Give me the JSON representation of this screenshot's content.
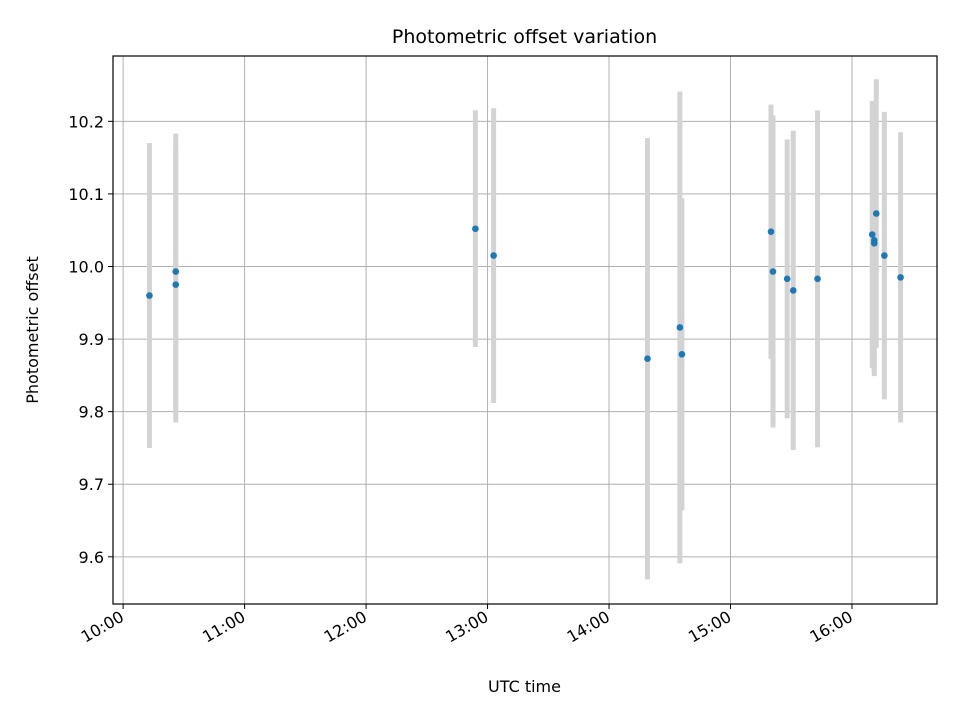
{
  "chart_data": {
    "type": "scatter",
    "title": "Photometric offset variation",
    "xlabel": "UTC time",
    "ylabel": "Photometric offset",
    "x_ticks": [
      "10:00",
      "11:00",
      "12:00",
      "13:00",
      "14:00",
      "15:00",
      "16:00"
    ],
    "y_ticks": [
      "9.6",
      "9.7",
      "9.8",
      "9.9",
      "10.0",
      "10.1",
      "10.2"
    ],
    "xlim": [
      "09:55",
      "16:42"
    ],
    "ylim": [
      9.535,
      10.29
    ],
    "grid": true,
    "point_color": "#1f77b4",
    "errorbar_color": "#d3d3d3",
    "points": [
      {
        "x": "10:13",
        "y": 9.96,
        "yerr": 0.21
      },
      {
        "x": "10:26",
        "y": 9.975,
        "yerr": 0.19
      },
      {
        "x": "10:26",
        "y": 9.993,
        "yerr": 0.19
      },
      {
        "x": "12:54",
        "y": 10.052,
        "yerr": 0.163
      },
      {
        "x": "13:03",
        "y": 10.015,
        "yerr": 0.203
      },
      {
        "x": "14:19",
        "y": 9.873,
        "yerr": 0.304
      },
      {
        "x": "14:35",
        "y": 9.916,
        "yerr": 0.325
      },
      {
        "x": "14:36",
        "y": 9.879,
        "yerr": 0.215
      },
      {
        "x": "15:20",
        "y": 10.048,
        "yerr": 0.175
      },
      {
        "x": "15:21",
        "y": 9.993,
        "yerr": 0.215
      },
      {
        "x": "15:28",
        "y": 9.983,
        "yerr": 0.192
      },
      {
        "x": "15:31",
        "y": 9.967,
        "yerr": 0.22
      },
      {
        "x": "15:43",
        "y": 9.983,
        "yerr": 0.232
      },
      {
        "x": "16:10",
        "y": 10.044,
        "yerr": 0.184
      },
      {
        "x": "16:11",
        "y": 10.036,
        "yerr": 0.183
      },
      {
        "x": "16:11",
        "y": 10.032,
        "yerr": 0.183
      },
      {
        "x": "16:12",
        "y": 10.073,
        "yerr": 0.185
      },
      {
        "x": "16:16",
        "y": 10.015,
        "yerr": 0.198
      },
      {
        "x": "16:24",
        "y": 9.985,
        "yerr": 0.2
      }
    ]
  }
}
